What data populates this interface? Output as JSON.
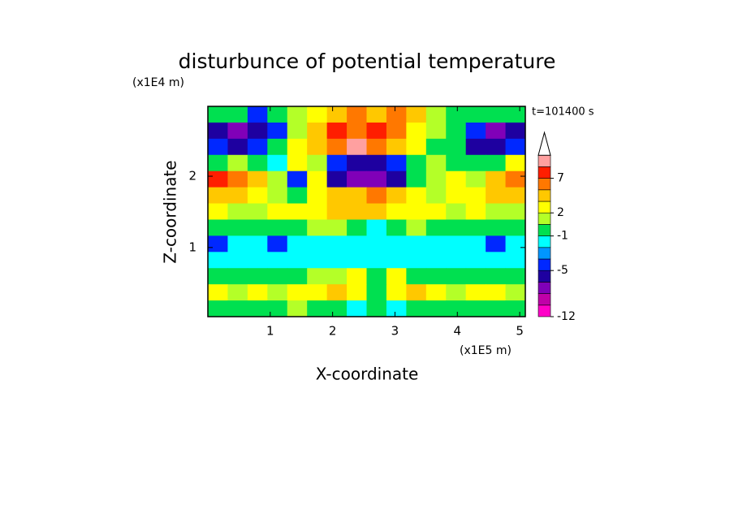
{
  "chart_data": {
    "type": "contour",
    "title": "disturbunce of potential temperature",
    "y_unit": "(x1E4 m)",
    "x_unit": "(x1E5 m)",
    "annotation": "t=101400 s",
    "x_label": "X-coordinate",
    "y_label": "Z-coordinate",
    "xlim": [
      0,
      5.09
    ],
    "ylim": [
      0.03,
      2.98
    ],
    "xticks": [
      1,
      2,
      3,
      4,
      5
    ],
    "yticks": [
      1,
      2
    ],
    "levels": [
      -12,
      -10,
      -8,
      -6,
      -5,
      -4,
      -2,
      -1,
      0,
      2,
      3,
      5,
      7,
      9,
      11
    ],
    "colors": [
      "#ff00c8",
      "#c000a8",
      "#8000b8",
      "#1e00a0",
      "#0028ff",
      "#0096ff",
      "#00ffff",
      "#00e050",
      "#b4ff28",
      "#ffff00",
      "#ffc800",
      "#ff7800",
      "#ff1e00",
      "#ffa0a0"
    ],
    "extend_color": "#ffffff",
    "colorbar_ticks": [
      -12,
      -5,
      -1,
      2,
      7
    ],
    "z": [
      [
        -0.5,
        -0.5,
        -4.5,
        -0.5,
        1,
        2.5,
        4,
        6,
        4,
        6,
        4,
        1,
        -0.5,
        -0.5,
        -0.5,
        -0.5
      ],
      [
        -5.5,
        -7,
        -5.5,
        -4.5,
        1,
        4,
        8,
        6,
        8,
        6,
        2.5,
        1,
        -0.5,
        -4.5,
        -7,
        -5.5
      ],
      [
        -4.5,
        -5.5,
        -4.5,
        -0.5,
        2.5,
        4,
        6,
        10,
        6,
        4,
        2.5,
        -0.5,
        -0.5,
        -5.5,
        -5.5,
        -4.5
      ],
      [
        -0.5,
        1,
        -0.5,
        -1.5,
        2.5,
        1,
        -4.5,
        -5.5,
        -5.5,
        -4.5,
        -0.5,
        1,
        -0.5,
        -0.5,
        -0.5,
        2.5
      ],
      [
        8,
        6,
        4,
        1,
        -4.5,
        2.5,
        -5.5,
        -7,
        -7,
        -5.5,
        -0.5,
        1,
        2.5,
        1,
        4,
        6
      ],
      [
        4,
        4,
        2.5,
        1,
        -0.5,
        2.5,
        4,
        4,
        6,
        4,
        2.5,
        1,
        2.5,
        2.5,
        4,
        4
      ],
      [
        2.5,
        1,
        1,
        2.5,
        2.5,
        2.5,
        4,
        4,
        4,
        2.5,
        2.5,
        2.5,
        1,
        2.5,
        1,
        1
      ],
      [
        -0.5,
        -0.5,
        -0.5,
        -0.5,
        -0.5,
        1,
        1,
        -0.5,
        -1.5,
        -0.5,
        1,
        -0.5,
        -0.5,
        -0.5,
        -0.5,
        -0.5
      ],
      [
        -4.5,
        -1.5,
        -1.5,
        -4.5,
        -1.5,
        -1.5,
        -1.5,
        -1.5,
        -1.5,
        -1.5,
        -1.5,
        -1.5,
        -1.5,
        -1.5,
        -4.5,
        -1.5
      ],
      [
        -1.5,
        -1.5,
        -1.5,
        -1.5,
        -1.5,
        -1.5,
        -1.5,
        -1.5,
        -1.5,
        -1.5,
        -1.5,
        -1.5,
        -1.5,
        -1.5,
        -1.5,
        -1.5
      ],
      [
        -0.5,
        -0.5,
        -0.5,
        -0.5,
        -0.5,
        1,
        1,
        2.5,
        -0.5,
        2.5,
        -0.5,
        -0.5,
        -0.5,
        -0.5,
        -0.5,
        -0.5
      ],
      [
        2.5,
        1,
        2.5,
        1,
        2.5,
        2.5,
        4,
        2.5,
        -0.5,
        2.5,
        4,
        2.5,
        1,
        2.5,
        2.5,
        1
      ],
      [
        -0.5,
        -0.5,
        -0.5,
        -0.5,
        1,
        -0.5,
        -0.5,
        -1.5,
        -0.5,
        -1.5,
        -0.5,
        -0.5,
        -0.5,
        -0.5,
        -0.5,
        -0.5
      ]
    ]
  }
}
